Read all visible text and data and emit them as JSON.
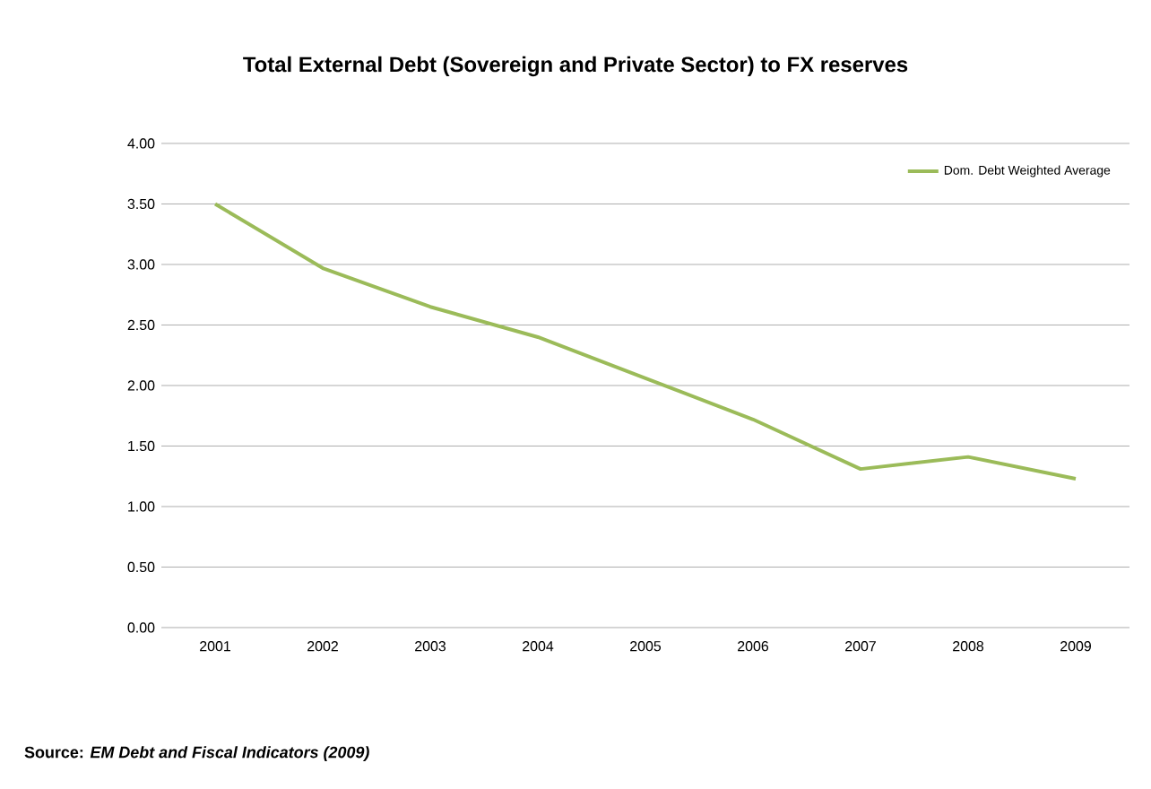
{
  "chart_data": {
    "type": "line",
    "title": "Total External Debt (Sovereign and Private Sector) to FX reserves",
    "categories": [
      "2001",
      "2002",
      "2003",
      "2004",
      "2005",
      "2006",
      "2007",
      "2008",
      "2009"
    ],
    "series": [
      {
        "name": "Dom. Debt Weighted Average",
        "color": "#9bbb59",
        "values": [
          3.5,
          2.97,
          2.65,
          2.4,
          2.06,
          1.72,
          1.31,
          1.41,
          1.23
        ]
      }
    ],
    "ylim": [
      0,
      4
    ],
    "yticks": [
      {
        "value": 0,
        "label": "0.00"
      },
      {
        "value": 0.5,
        "label": "0.50"
      },
      {
        "value": 1,
        "label": "1.00"
      },
      {
        "value": 1.5,
        "label": "1.50"
      },
      {
        "value": 2,
        "label": "2.00"
      },
      {
        "value": 2.5,
        "label": "2.50"
      },
      {
        "value": 3,
        "label": "3.00"
      },
      {
        "value": 3.5,
        "label": "3.50"
      },
      {
        "value": 4,
        "label": "4.00"
      }
    ],
    "grid": "y",
    "legend": "top right",
    "marker": "none",
    "line_style": "solid",
    "annotations": [
      "Source: *EM Debt and Fiscal Indicators (2009)*"
    ]
  }
}
